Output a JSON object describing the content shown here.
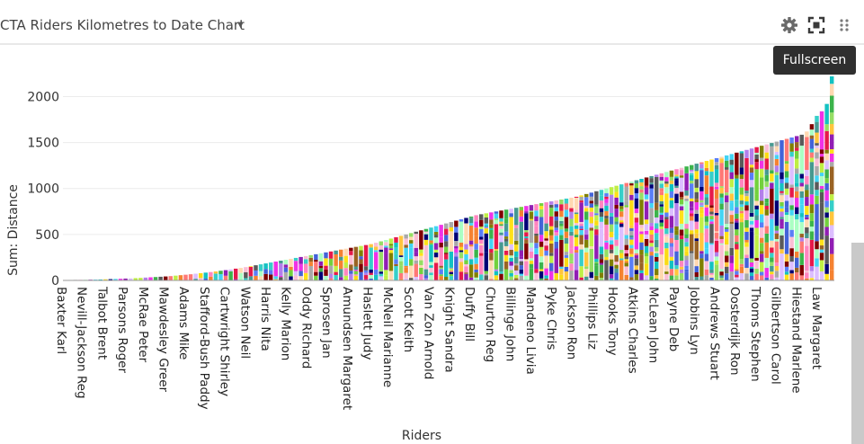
{
  "header": {
    "title": "CTA Riders Kilometres to Date Chart",
    "tooltip": "Fullscreen",
    "icons": [
      "gear-icon",
      "fullscreen-icon",
      "drag-handle-icon",
      "chevron-down-icon"
    ]
  },
  "chart_data": {
    "type": "bar",
    "stacked": true,
    "xlabel": "Riders",
    "ylabel": "Sum: Distance",
    "ylim": [
      0,
      2200
    ],
    "yticks": [
      0,
      500,
      1000,
      1500,
      2000
    ],
    "grid": true,
    "palette": [
      "#e6194b",
      "#3cb44b",
      "#4363d8",
      "#f58231",
      "#911eb4",
      "#42d4f4",
      "#f032e6",
      "#bfef45",
      "#fabed4",
      "#469990",
      "#dcbeff",
      "#9a6324",
      "#ffd8b1",
      "#800000",
      "#aaffc3",
      "#808000",
      "#000075",
      "#a9a9a9",
      "#ffe119",
      "#5a5a5a",
      "#ffc53d",
      "#36cfc9",
      "#b37feb",
      "#ff85c0",
      "#95de64",
      "#ff7875",
      "#597ef7",
      "#73d13d",
      "#fadb14",
      "#13c2c2"
    ],
    "labeled_categories": [
      "Baxter Karl",
      "Nevill-Jackson Reg",
      "Talbot Brent",
      "Parsons Roger",
      "McRae Peter",
      "Mawdesley Greer",
      "Adams Mike",
      "Stafford-Bush Paddy",
      "Cartwright Shirley",
      "Watson Neil",
      "Harris Nita",
      "Kelly Marion",
      "Oddy Richard",
      "Sprosen Jan",
      "Amundsen Margaret",
      "Haslett Judy",
      "McNeil Marianne",
      "Scott Keith",
      "Van Zon Arnold",
      "Knight Sandra",
      "Duffy Bill",
      "Churton Reg",
      "Billinge John",
      "Mandeno Livia",
      "Pyke Chris",
      "Jackson Ron",
      "Phillips Liz",
      "Hooks Tony",
      "Atkins Charles",
      "McLean John",
      "Payne Deb",
      "Jobbins Lyn",
      "Andrews Stuart",
      "Oosterdijk Ron",
      "Thoms Stephen",
      "Gilbertson Carol",
      "Hiestand Marlene",
      "Law Margaret"
    ],
    "values": [
      5,
      5,
      6,
      6,
      7,
      8,
      9,
      10,
      12,
      14,
      16,
      18,
      20,
      22,
      25,
      28,
      31,
      34,
      37,
      40,
      43,
      47,
      52,
      57,
      62,
      67,
      73,
      79,
      85,
      91,
      98,
      105,
      112,
      120,
      128,
      136,
      145,
      155,
      165,
      175,
      185,
      195,
      205,
      215,
      225,
      235,
      245,
      255,
      265,
      275,
      285,
      295,
      305,
      315,
      325,
      335,
      345,
      355,
      365,
      375,
      385,
      395,
      410,
      425,
      440,
      455,
      470,
      485,
      500,
      515,
      530,
      545,
      560,
      575,
      590,
      605,
      620,
      635,
      650,
      665,
      680,
      695,
      710,
      720,
      730,
      740,
      750,
      760,
      770,
      780,
      790,
      800,
      810,
      820,
      830,
      840,
      850,
      860,
      870,
      880,
      890,
      900,
      910,
      925,
      940,
      955,
      970,
      985,
      1000,
      1015,
      1030,
      1045,
      1060,
      1075,
      1090,
      1105,
      1120,
      1135,
      1150,
      1165,
      1180,
      1195,
      1210,
      1225,
      1240,
      1255,
      1270,
      1285,
      1300,
      1315,
      1330,
      1345,
      1360,
      1375,
      1390,
      1405,
      1420,
      1435,
      1450,
      1465,
      1480,
      1495,
      1510,
      1525,
      1540,
      1555,
      1570,
      1585,
      1620,
      1700,
      1790,
      1840,
      1920,
      2220
    ]
  }
}
